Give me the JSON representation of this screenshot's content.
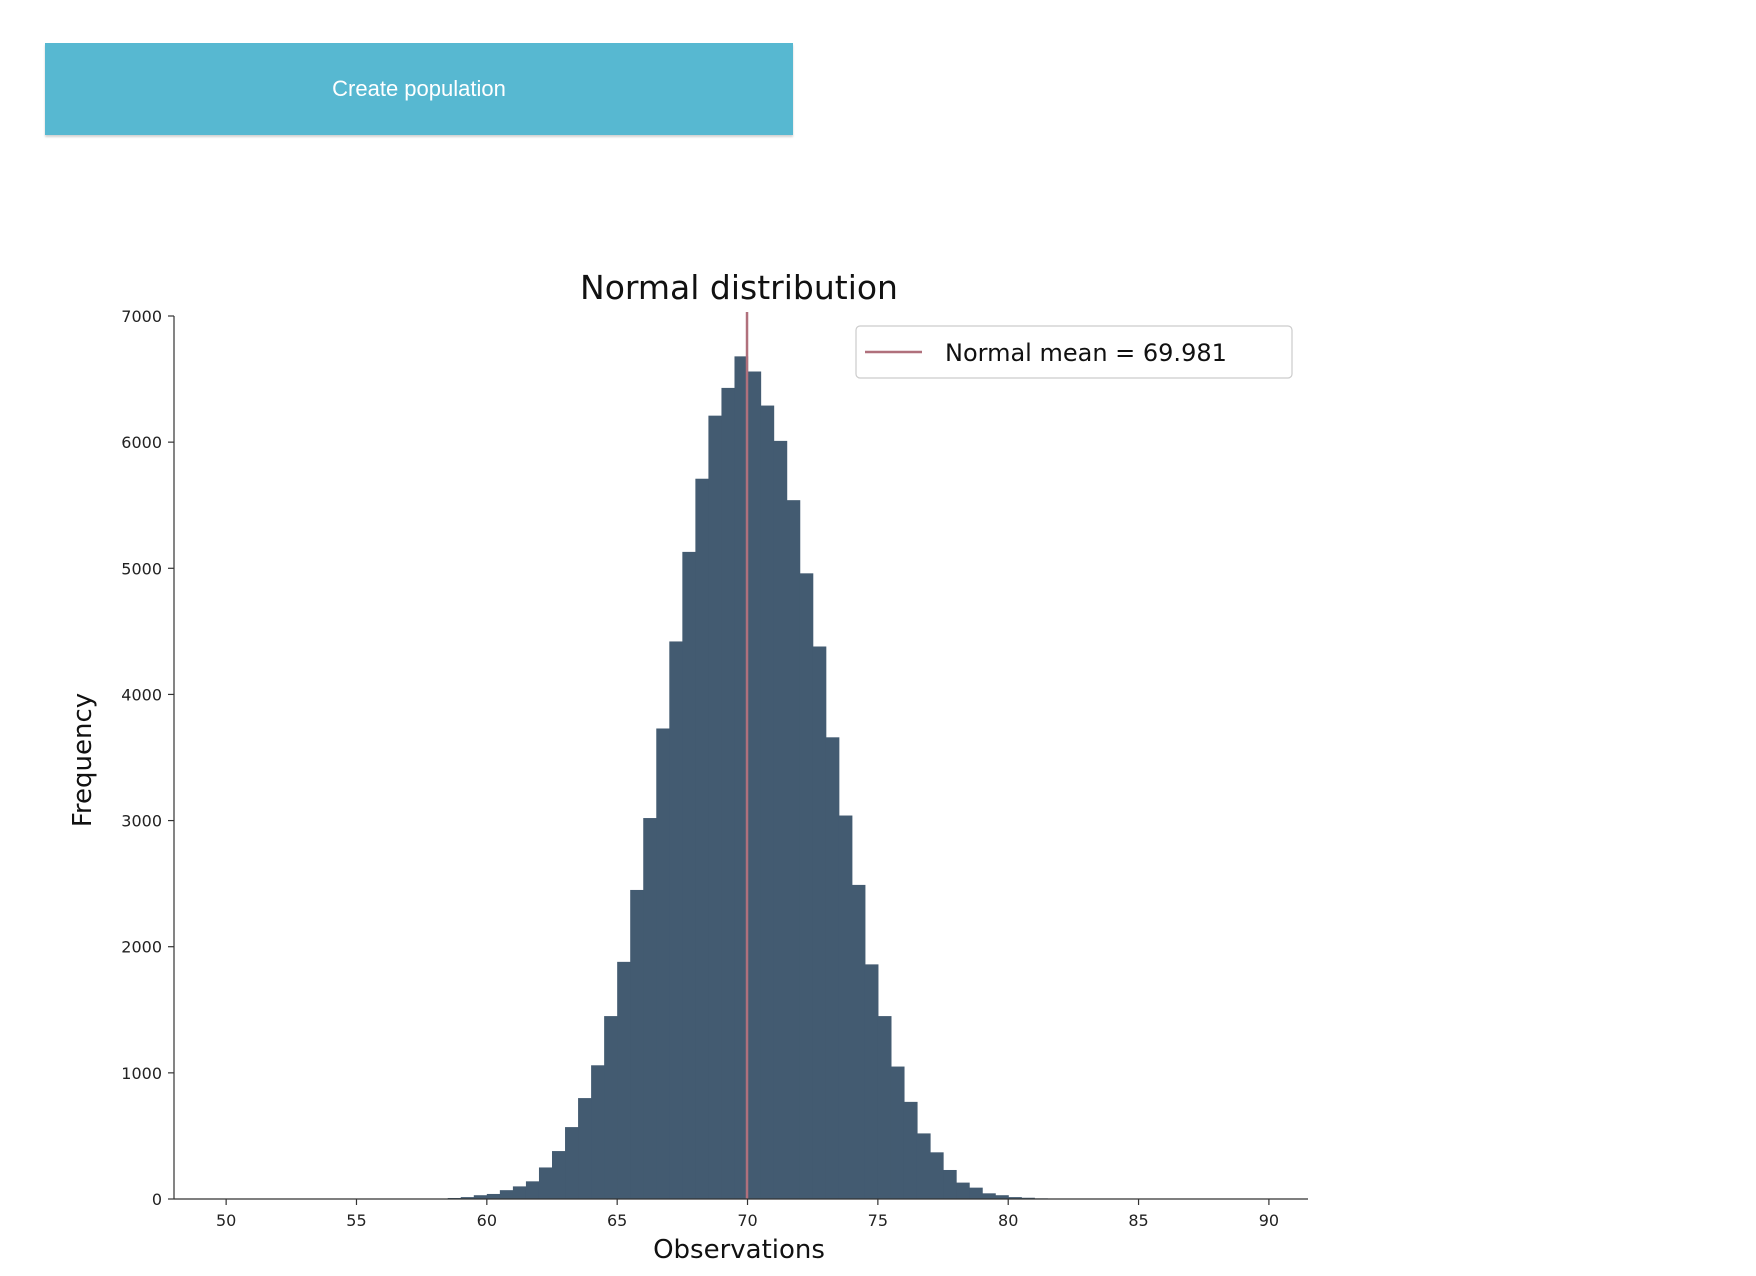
{
  "button": {
    "label": "Create population"
  },
  "chart_data": {
    "type": "bar",
    "title": "Normal distribution",
    "xlabel": "Observations",
    "ylabel": "Frequency",
    "xlim": [
      48,
      91.5
    ],
    "ylim": [
      0,
      7000
    ],
    "xticks": [
      50,
      55,
      60,
      65,
      70,
      75,
      80,
      85,
      90
    ],
    "yticks": [
      0,
      1000,
      2000,
      3000,
      4000,
      5000,
      6000,
      7000
    ],
    "grid": false,
    "legend_position": "top-right",
    "bar_color": "#435b71",
    "mean_line_color": "#b0707c",
    "mean": 69.981,
    "legend_label": "Normal mean = 69.981",
    "bin_width": 0.5,
    "bin_starts": [
      58.5,
      59,
      59.5,
      60,
      60.5,
      61,
      61.5,
      62,
      62.5,
      63,
      63.5,
      64,
      64.5,
      65,
      65.5,
      66,
      66.5,
      67,
      67.5,
      68,
      68.5,
      69,
      69.5,
      70,
      70.5,
      71,
      71.5,
      72,
      72.5,
      73,
      73.5,
      74,
      74.5,
      75,
      75.5,
      76,
      76.5,
      77,
      77.5,
      78,
      78.5,
      79,
      79.5,
      80,
      80.5,
      81
    ],
    "values": [
      8,
      15,
      30,
      40,
      70,
      100,
      140,
      250,
      380,
      570,
      800,
      1060,
      1450,
      1880,
      2450,
      3020,
      3730,
      4420,
      5130,
      5710,
      6210,
      6430,
      6680,
      6560,
      6290,
      6010,
      5540,
      4960,
      4380,
      3660,
      3040,
      2490,
      1860,
      1450,
      1050,
      770,
      520,
      370,
      230,
      130,
      90,
      45,
      30,
      15,
      10,
      5
    ]
  }
}
